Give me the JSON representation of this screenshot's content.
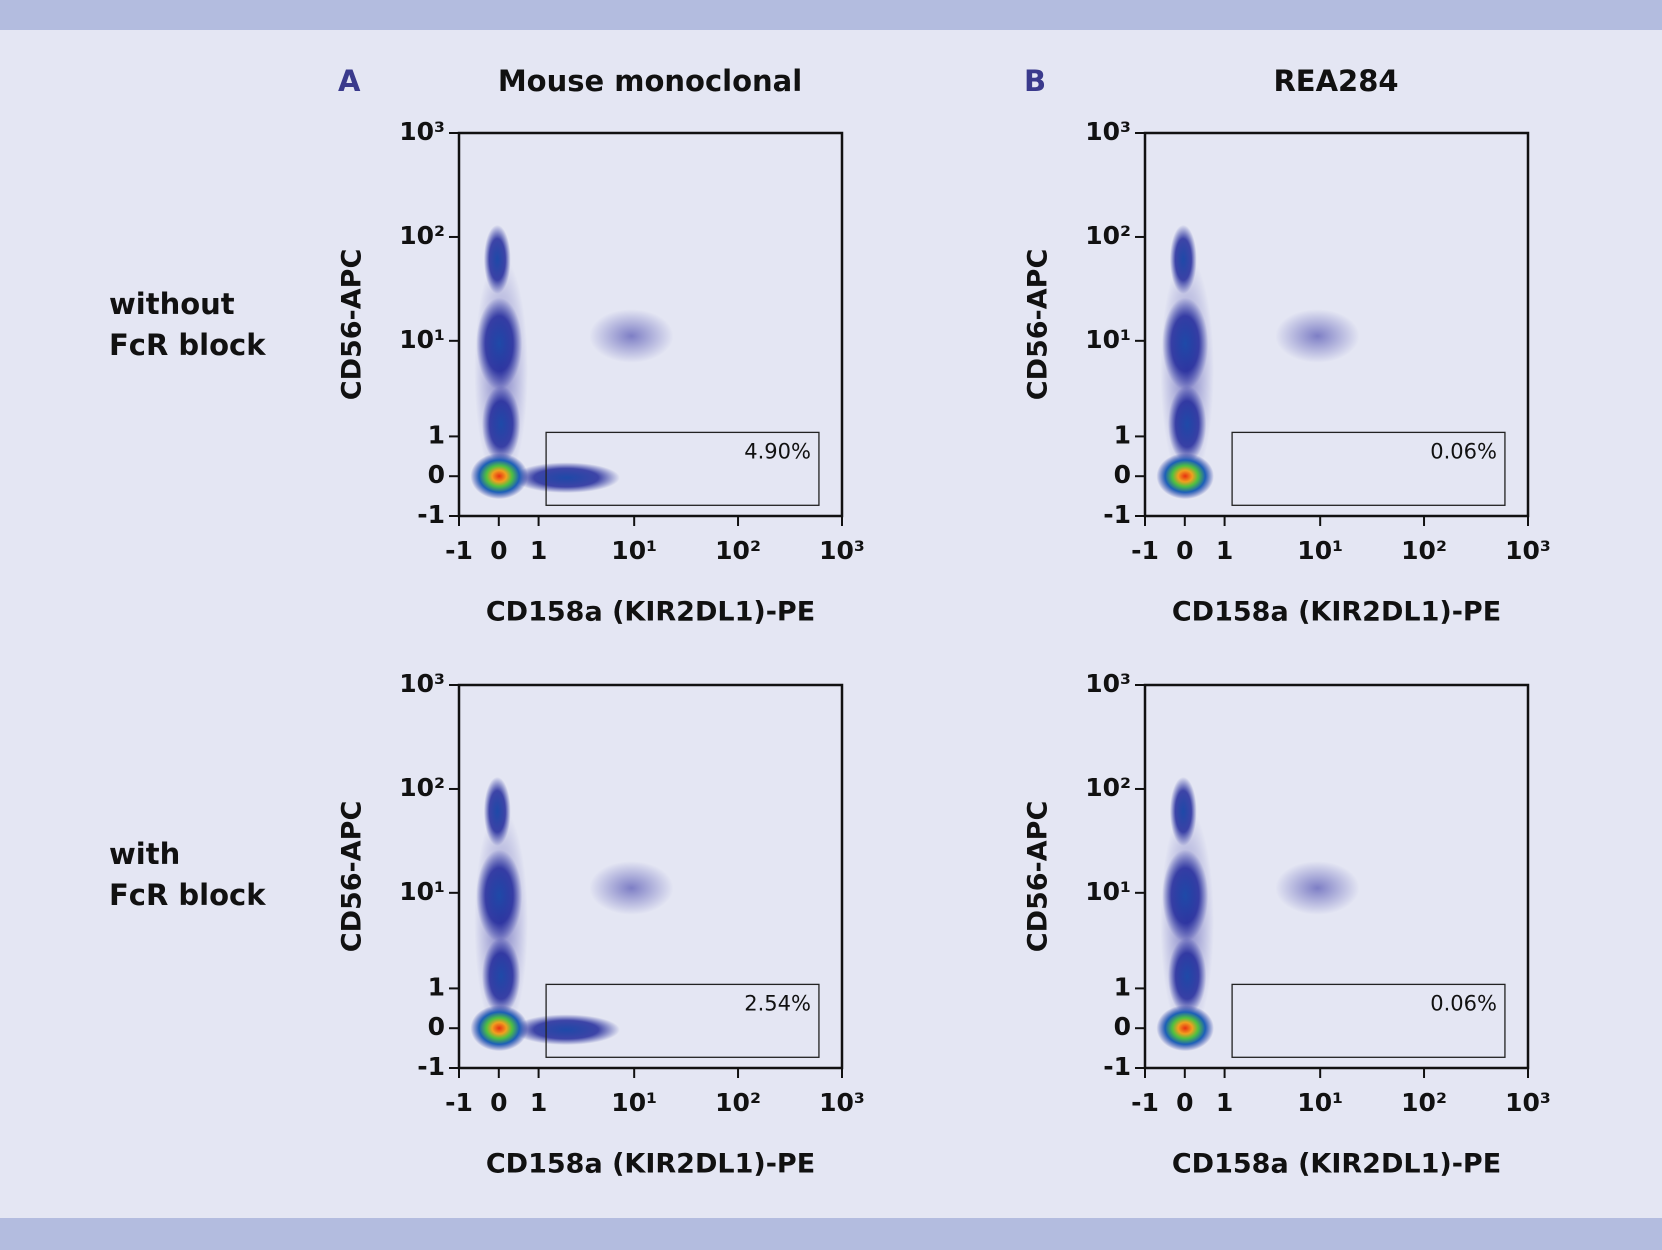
{
  "columns": [
    {
      "label": "A",
      "title": "Mouse monoclonal"
    },
    {
      "label": "B",
      "title": "REA284"
    }
  ],
  "row_labels": [
    [
      "without",
      "FcR block"
    ],
    [
      "with",
      "FcR block"
    ]
  ],
  "chart_data": [
    {
      "type": "scatter",
      "xlabel": "CD158a (KIR2DL1)-PE",
      "ylabel": "CD56-APC",
      "xscale": "asinh",
      "yscale": "asinh",
      "xlim": [
        -1,
        1000
      ],
      "ylim": [
        -1,
        1000
      ],
      "xticks": [
        -1,
        0,
        1,
        {
          "value": 10,
          "label": "10¹"
        },
        {
          "value": 100,
          "label": "10²"
        },
        {
          "value": 1000,
          "label": "10³"
        }
      ],
      "yticks": [
        -1,
        0,
        1,
        {
          "value": 10,
          "label": "10¹"
        },
        {
          "value": 100,
          "label": "10²"
        },
        {
          "value": 1000,
          "label": "10³"
        }
      ],
      "gate": {
        "x": [
          1.25,
          600
        ],
        "y": [
          -0.69,
          1.13
        ],
        "value": 4.9,
        "value_label": "4.90%"
      }
    },
    {
      "type": "scatter",
      "xlabel": "CD158a (KIR2DL1)-PE",
      "ylabel": "CD56-APC",
      "xscale": "asinh",
      "yscale": "asinh",
      "xlim": [
        -1,
        1000
      ],
      "ylim": [
        -1,
        1000
      ],
      "xticks": [
        -1,
        0,
        1,
        {
          "value": 10,
          "label": "10¹"
        },
        {
          "value": 100,
          "label": "10²"
        },
        {
          "value": 1000,
          "label": "10³"
        }
      ],
      "yticks": [
        -1,
        0,
        1,
        {
          "value": 10,
          "label": "10¹"
        },
        {
          "value": 100,
          "label": "10²"
        },
        {
          "value": 1000,
          "label": "10³"
        }
      ],
      "gate": {
        "x": [
          1.25,
          600
        ],
        "y": [
          -0.69,
          1.13
        ],
        "value": 0.06,
        "value_label": "0.06%"
      }
    },
    {
      "type": "scatter",
      "xlabel": "CD158a (KIR2DL1)-PE",
      "ylabel": "CD56-APC",
      "xscale": "asinh",
      "yscale": "asinh",
      "xlim": [
        -1,
        1000
      ],
      "ylim": [
        -1,
        1000
      ],
      "xticks": [
        -1,
        0,
        1,
        {
          "value": 10,
          "label": "10¹"
        },
        {
          "value": 100,
          "label": "10²"
        },
        {
          "value": 1000,
          "label": "10³"
        }
      ],
      "yticks": [
        -1,
        0,
        1,
        {
          "value": 10,
          "label": "10¹"
        },
        {
          "value": 100,
          "label": "10²"
        },
        {
          "value": 1000,
          "label": "10³"
        }
      ],
      "gate": {
        "x": [
          1.25,
          600
        ],
        "y": [
          -0.69,
          1.13
        ],
        "value": 2.54,
        "value_label": "2.54%"
      }
    },
    {
      "type": "scatter",
      "xlabel": "CD158a (KIR2DL1)-PE",
      "ylabel": "CD56-APC",
      "xscale": "asinh",
      "yscale": "asinh",
      "xlim": [
        -1,
        1000
      ],
      "ylim": [
        -1,
        1000
      ],
      "xticks": [
        -1,
        0,
        1,
        {
          "value": 10,
          "label": "10¹"
        },
        {
          "value": 100,
          "label": "10²"
        },
        {
          "value": 1000,
          "label": "10³"
        }
      ],
      "yticks": [
        -1,
        0,
        1,
        {
          "value": 10,
          "label": "10¹"
        },
        {
          "value": 100,
          "label": "10²"
        },
        {
          "value": 1000,
          "label": "10³"
        }
      ],
      "gate": {
        "x": [
          1.25,
          600
        ],
        "y": [
          -0.69,
          1.13
        ],
        "value": 0.06,
        "value_label": "0.06%"
      }
    }
  ]
}
